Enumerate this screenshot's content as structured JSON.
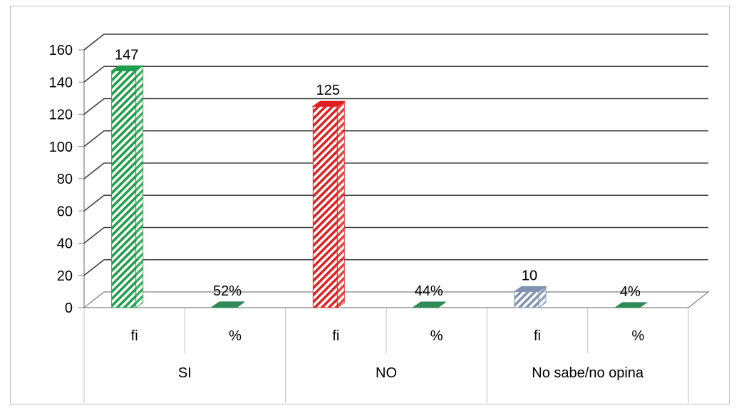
{
  "chart_data": {
    "type": "bar",
    "title": "",
    "xlabel": "",
    "ylabel": "",
    "ylim": [
      0,
      160
    ],
    "yticks": [
      "0",
      "20",
      "40",
      "60",
      "80",
      "100",
      "120",
      "140",
      "160"
    ],
    "grid": true,
    "legend": "none",
    "groups": [
      "SI",
      "NO",
      "No sabe/no opina"
    ],
    "subcategories": [
      "fi",
      "%"
    ],
    "bars": [
      {
        "group": "SI",
        "sub": "fi",
        "value": 147,
        "label": "147",
        "color": "#1e9e4a"
      },
      {
        "group": "SI",
        "sub": "%",
        "value": 0.52,
        "label": "52%",
        "color": "#2e8b57"
      },
      {
        "group": "NO",
        "sub": "fi",
        "value": 125,
        "label": "125",
        "color": "#e02020"
      },
      {
        "group": "NO",
        "sub": "%",
        "value": 0.44,
        "label": "44%",
        "color": "#2e8b57"
      },
      {
        "group": "No sabe/no opina",
        "sub": "fi",
        "value": 10,
        "label": "10",
        "color": "#7f93b0"
      },
      {
        "group": "No sabe/no opina",
        "sub": "%",
        "value": 0.04,
        "label": "4%",
        "color": "#2e8b57"
      }
    ]
  }
}
